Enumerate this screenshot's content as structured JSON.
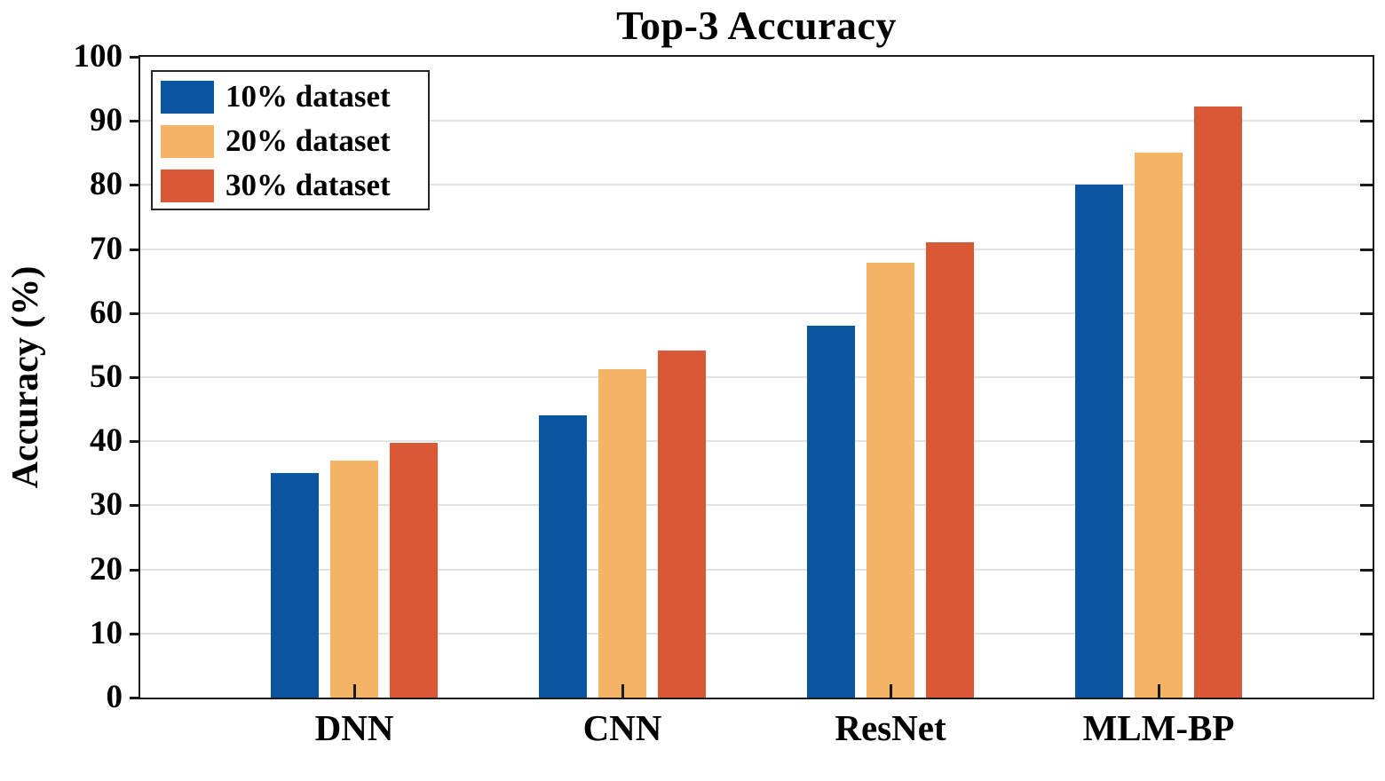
{
  "chart_data": {
    "type": "bar",
    "title": "Top-3 Accuracy",
    "ylabel": "Accuracy (%)",
    "xlabel": "",
    "categories": [
      "DNN",
      "CNN",
      "ResNet",
      "MLM-BP"
    ],
    "series": [
      {
        "name": "10% dataset",
        "color": "#0B54A0",
        "values": [
          35,
          44,
          58,
          80
        ]
      },
      {
        "name": "20% dataset",
        "color": "#F5B366",
        "values": [
          37,
          51.3,
          67.8,
          85
        ]
      },
      {
        "name": "30% dataset",
        "color": "#D95836",
        "values": [
          39.8,
          54.2,
          71,
          92.3
        ]
      }
    ],
    "ylim": [
      0,
      100
    ],
    "yticks": [
      0,
      10,
      20,
      30,
      40,
      50,
      60,
      70,
      80,
      90,
      100
    ],
    "grid": "horizontal",
    "legend_position": "top-left",
    "colors": {
      "grid": "#E2E2E2",
      "axis": "#1A1A1A",
      "background": "#FFFFFF",
      "text": "#000000"
    }
  }
}
